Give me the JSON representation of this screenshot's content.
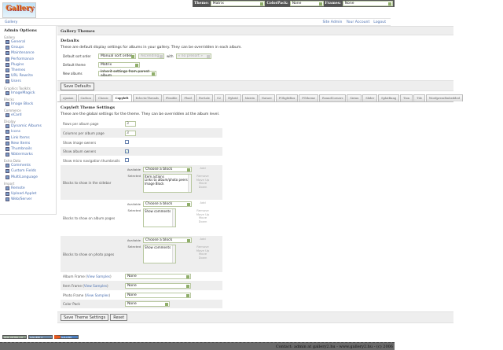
{
  "topbar": {
    "theme_label": "Theme:",
    "theme_value": "Matrix",
    "colorpack_label": "ColorPack:",
    "colorpack_value": "None",
    "frames_label": "Frames:",
    "frames_value": "None"
  },
  "logo": {
    "text": "Gallery"
  },
  "breadcrumb": {
    "home": "Gallery"
  },
  "user_links": [
    "Site Admin",
    "Your Account",
    "Logout"
  ],
  "sidebar": {
    "title": "Admin Options",
    "groups": [
      {
        "label": "Gallery",
        "items": [
          "General",
          "Groups",
          "Maintenance",
          "Performance",
          "Plugins",
          "Themes",
          "URL Rewrite",
          "Users"
        ]
      },
      {
        "label": "Graphics Toolkits",
        "items": [
          "ImageMagick"
        ]
      },
      {
        "label": "Blocks",
        "items": [
          "Image Block"
        ]
      },
      {
        "label": "Commerce",
        "items": [
          "eCard"
        ]
      },
      {
        "label": "Display",
        "items": [
          "Dynamic Albums",
          "Icons",
          "Link Items",
          "New Items",
          "Thumbnails",
          "Watermarks"
        ]
      },
      {
        "label": "Extra Data",
        "items": [
          "Comments",
          "Custom Fields",
          "MultiLanguage"
        ]
      },
      {
        "label": "Import",
        "items": [
          "Remote",
          "Upload Applet",
          "Web/Server"
        ]
      }
    ],
    "active": "Themes"
  },
  "main": {
    "title": "Gallery Themes",
    "defaults": {
      "heading": "Defaults",
      "description": "These are default display settings for albums in your gallery. They can be overridden in each album.",
      "sort_label": "Default sort order",
      "sort_value": "Manual sort order",
      "sort_dir": "Ascending",
      "with_label": "with",
      "with_value": "« no presort »",
      "theme_label": "Default theme",
      "theme_value": "Matrix",
      "new_albums_label": "New albums",
      "new_albums_value": "Inherit settings from parent album",
      "save_button": "Save Defaults"
    },
    "tabs": [
      "Ajaxian",
      "Carbon",
      "Classic",
      "Copyleft",
      "EclecticThreads",
      "Flexible",
      "Fluid",
      "ForSale",
      "G2",
      "Hybrid",
      "Matrix",
      "Nature",
      "PGlightBox",
      "PGtheme",
      "RoundCorners",
      "Siriux",
      "Slider",
      "SplatBang",
      "Tion",
      "Tile",
      "WordpressEmbedded"
    ],
    "active_tab": "Copyleft",
    "theme_settings": {
      "heading": "Copyleft Theme Settings",
      "description": "These are the global settings for the theme. They can be overridden at the album level.",
      "rows_label": "Rows per album page",
      "rows_value": "3",
      "cols_label": "Columns per album page",
      "cols_value": "3",
      "image_owners_label": "Show image owners",
      "image_owners": false,
      "album_owners_label": "Show album owners",
      "album_owners": true,
      "micro_nav_label": "Show micro navigation thumbnails",
      "micro_nav": false,
      "available_label": "Available",
      "selected_label": "Selected",
      "choose": "Choose a block",
      "add": "Add",
      "remove": "Remove",
      "move_up": "Move Up",
      "move_down": "Move Down",
      "sidebar_blocks_label": "Blocks to show in the sidebar",
      "sidebar_blocks": [
        "Item actions",
        "Links to album/photo peers",
        "Image Block"
      ],
      "album_blocks_label": "Blocks to show on album pages",
      "album_blocks": [
        "Show comments"
      ],
      "photo_blocks_label": "Blocks to show on photo pages",
      "photo_blocks": [
        "Show comments"
      ],
      "album_frame_label": "Album Frame",
      "item_frame_label": "Item Frame",
      "photo_frame_label": "Photo Frame",
      "view_samples": "View Samples",
      "album_frame": "None",
      "item_frame": "None",
      "photo_frame": "None",
      "color_pack_label": "Color Pack",
      "color_pack": "None",
      "save_button": "Save Theme Settings",
      "reset_button": "Reset"
    }
  },
  "badges": [
    "W3C XHTML 1.0",
    "GALLERY 2",
    "GALLERY"
  ],
  "footer": {
    "text": "Contact: admin at gallery2.hu - www.gallery2.hu - (c) 2006"
  }
}
